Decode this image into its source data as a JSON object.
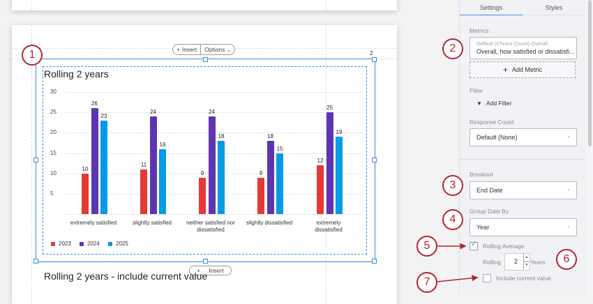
{
  "canvas": {
    "top_page_visible": true,
    "insert_toolbar": {
      "insert_label": "Insert",
      "options_label": "Options"
    },
    "widget_index": "2",
    "bottom_insert_label": "Insert",
    "next_widget_title": "Rolling 2 years - include current value"
  },
  "chart_data": {
    "type": "bar",
    "title": "Rolling 2 years",
    "categories": [
      "extremely satisfied",
      "slightly satisfied",
      "neither satisfied nor dissatisfied",
      "slightly dissatisfied",
      "extremely dissatisfied"
    ],
    "series": [
      {
        "name": "2023",
        "color": "#e53935",
        "values": [
          10,
          11,
          9,
          9,
          12
        ]
      },
      {
        "name": "2024",
        "color": "#5e35b1",
        "values": [
          26,
          24,
          24,
          18,
          25
        ]
      },
      {
        "name": "2025",
        "color": "#039be5",
        "values": [
          23,
          16,
          18,
          15,
          19
        ]
      }
    ],
    "yticks": [
      "30",
      "25",
      "20",
      "15",
      "10",
      "5"
    ],
    "ylim": [
      0,
      30
    ],
    "xlabel": "",
    "ylabel": "",
    "grid": true,
    "legend_position": "bottom-left",
    "x_labels": [
      [
        "extremely satisfied"
      ],
      [
        "slightly satisfied"
      ],
      [
        "neither satisfied nor",
        "dissatisfied"
      ],
      [
        "slightly dissatisfied"
      ],
      [
        "extremely",
        "dissatisfied"
      ]
    ]
  },
  "panel": {
    "tabs": [
      {
        "label": "Settings",
        "active": true
      },
      {
        "label": "Styles",
        "active": false
      }
    ],
    "metrics": {
      "label": "Metrics",
      "metric_subtitle": "Default (Choice Count) Overall",
      "metric_title": "Overall, how satisfied or dissatisfi...",
      "add_metric_label": "Add Metric"
    },
    "filter": {
      "label": "Filter",
      "add_filter_label": "Add Filter"
    },
    "response_count": {
      "label": "Response Count",
      "value": "Default (None)"
    },
    "breakout": {
      "label": "Breakout",
      "value": "End Date"
    },
    "group_date_by": {
      "label": "Group Date By",
      "value": "Year"
    },
    "rolling_average": {
      "label": "Rolling Average",
      "checked": true
    },
    "rolling": {
      "prefix": "Rolling",
      "value": "2",
      "suffix": "Years"
    },
    "include_current": {
      "label": "Include current value",
      "checked": false
    }
  },
  "annotations": [
    "1",
    "2",
    "3",
    "4",
    "5",
    "6",
    "7"
  ],
  "colors": {
    "selection": "#3b8be0",
    "annotation": "#b8232e",
    "accent_tab": "#3b8be0"
  }
}
